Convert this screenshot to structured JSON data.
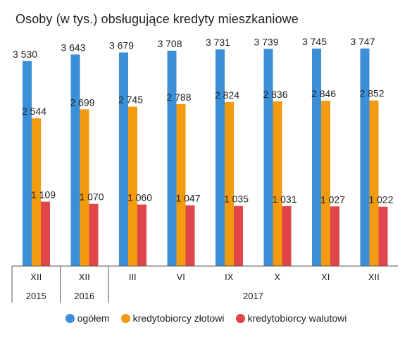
{
  "chart_data": {
    "type": "bar",
    "title": "Osoby (w tys.) obsługujące kredyty mieszkaniowe",
    "categories": [
      "XII",
      "XII",
      "III",
      "VI",
      "IX",
      "X",
      "XI",
      "XII"
    ],
    "year_groups": [
      {
        "label": "2015",
        "span": 1
      },
      {
        "label": "2016",
        "span": 1
      },
      {
        "label": "2017",
        "span": 6
      }
    ],
    "series": [
      {
        "name": "ogółem",
        "color": "#3a8fd6",
        "values": [
          3530,
          3643,
          3679,
          3708,
          3731,
          3739,
          3745,
          3747
        ],
        "labels": [
          "3 530",
          "3 643",
          "3 679",
          "3 708",
          "3 731",
          "3 739",
          "3 745",
          "3 747"
        ]
      },
      {
        "name": "kredytobiorcy złotowi",
        "color": "#f39b0f",
        "values": [
          2544,
          2699,
          2745,
          2788,
          2824,
          2836,
          2846,
          2852
        ],
        "labels": [
          "2 544",
          "2 699",
          "2 745",
          "2 788",
          "2 824",
          "2 836",
          "2 846",
          "2 852"
        ]
      },
      {
        "name": "kredytobiorcy walutowi",
        "color": "#e0454a",
        "values": [
          1109,
          1070,
          1060,
          1047,
          1035,
          1031,
          1027,
          1022
        ],
        "labels": [
          "1 109",
          "1 070",
          "1 060",
          "1 047",
          "1 035",
          "1 031",
          "1 027",
          "1 022"
        ]
      }
    ],
    "ylim": [
      0,
      4000
    ],
    "grid": false,
    "legend_position": "bottom"
  }
}
